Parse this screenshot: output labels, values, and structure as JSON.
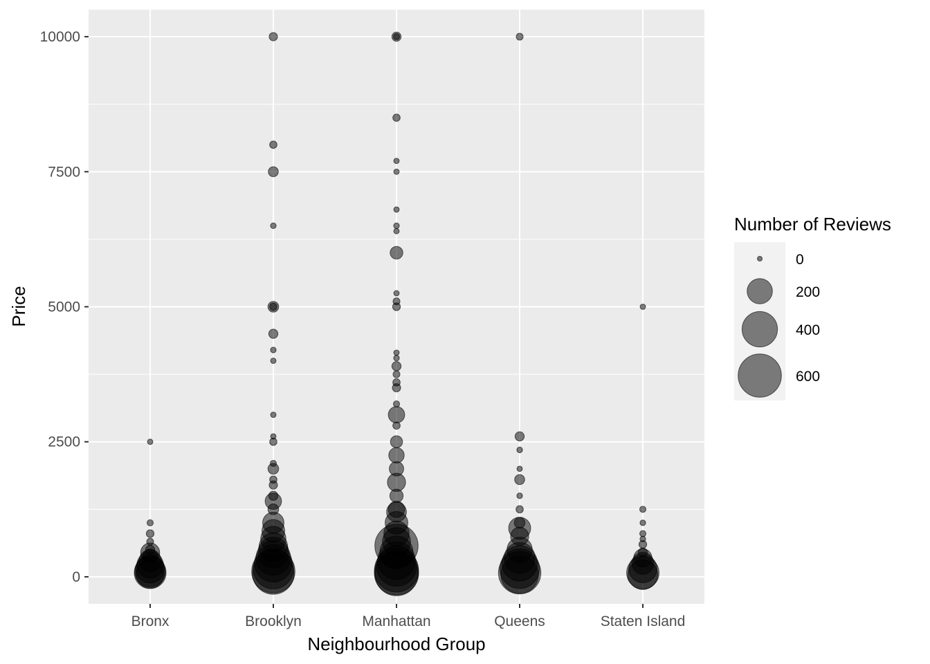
{
  "chart_data": {
    "type": "scatter",
    "title": "",
    "xlabel": "Neighbourhood Group",
    "ylabel": "Price",
    "categories": [
      "Bronx",
      "Brooklyn",
      "Manhattan",
      "Queens",
      "Staten Island"
    ],
    "ylim": [
      -500,
      10500
    ],
    "yticks": [
      0,
      2500,
      5000,
      7500,
      10000
    ],
    "ytick_labels": [
      "0",
      "2500",
      "5000",
      "7500",
      "10000"
    ],
    "grid": true,
    "legend": {
      "title": "Number of Reviews",
      "position": "right",
      "entries": [
        {
          "label": "0",
          "value": 0
        },
        {
          "label": "200",
          "value": 200
        },
        {
          "label": "400",
          "value": 400
        },
        {
          "label": "600",
          "value": 600
        }
      ]
    },
    "colors": {
      "panel": "#ebebeb",
      "grid": "#ffffff",
      "point_fill": "#000000",
      "point_opacity": 0.5
    },
    "size_encoding": "Number of Reviews",
    "points": [
      {
        "x": "Bronx",
        "y": 2500,
        "reviews": 2
      },
      {
        "x": "Bronx",
        "y": 1000,
        "reviews": 5
      },
      {
        "x": "Bronx",
        "y": 800,
        "reviews": 12
      },
      {
        "x": "Bronx",
        "y": 650,
        "reviews": 8
      },
      {
        "x": "Bronx",
        "y": 500,
        "reviews": 20
      },
      {
        "x": "Bronx",
        "y": 450,
        "reviews": 110
      },
      {
        "x": "Bronx",
        "y": 380,
        "reviews": 60
      },
      {
        "x": "Bronx",
        "y": 300,
        "reviews": 150
      },
      {
        "x": "Bronx",
        "y": 220,
        "reviews": 220
      },
      {
        "x": "Bronx",
        "y": 150,
        "reviews": 260
      },
      {
        "x": "Bronx",
        "y": 100,
        "reviews": 300
      },
      {
        "x": "Bronx",
        "y": 75,
        "reviews": 320
      },
      {
        "x": "Bronx",
        "y": 50,
        "reviews": 250
      },
      {
        "x": "Brooklyn",
        "y": 10000,
        "reviews": 15
      },
      {
        "x": "Brooklyn",
        "y": 8000,
        "reviews": 10
      },
      {
        "x": "Brooklyn",
        "y": 7500,
        "reviews": 25
      },
      {
        "x": "Brooklyn",
        "y": 6500,
        "reviews": 3
      },
      {
        "x": "Brooklyn",
        "y": 5000,
        "reviews": 30
      },
      {
        "x": "Brooklyn",
        "y": 5000,
        "reviews": 10
      },
      {
        "x": "Brooklyn",
        "y": 4500,
        "reviews": 20
      },
      {
        "x": "Brooklyn",
        "y": 4200,
        "reviews": 3
      },
      {
        "x": "Brooklyn",
        "y": 4000,
        "reviews": 2
      },
      {
        "x": "Brooklyn",
        "y": 3000,
        "reviews": 2
      },
      {
        "x": "Brooklyn",
        "y": 2600,
        "reviews": 2
      },
      {
        "x": "Brooklyn",
        "y": 2500,
        "reviews": 10
      },
      {
        "x": "Brooklyn",
        "y": 2100,
        "reviews": 5
      },
      {
        "x": "Brooklyn",
        "y": 2000,
        "reviews": 30
      },
      {
        "x": "Brooklyn",
        "y": 1800,
        "reviews": 10
      },
      {
        "x": "Brooklyn",
        "y": 1700,
        "reviews": 15
      },
      {
        "x": "Brooklyn",
        "y": 1500,
        "reviews": 20
      },
      {
        "x": "Brooklyn",
        "y": 1400,
        "reviews": 80
      },
      {
        "x": "Brooklyn",
        "y": 1250,
        "reviews": 30
      },
      {
        "x": "Brooklyn",
        "y": 1000,
        "reviews": 140
      },
      {
        "x": "Brooklyn",
        "y": 850,
        "reviews": 160
      },
      {
        "x": "Brooklyn",
        "y": 700,
        "reviews": 200
      },
      {
        "x": "Brooklyn",
        "y": 550,
        "reviews": 260
      },
      {
        "x": "Brooklyn",
        "y": 450,
        "reviews": 300
      },
      {
        "x": "Brooklyn",
        "y": 350,
        "reviews": 380
      },
      {
        "x": "Brooklyn",
        "y": 250,
        "reviews": 450
      },
      {
        "x": "Brooklyn",
        "y": 150,
        "reviews": 520
      },
      {
        "x": "Brooklyn",
        "y": 100,
        "reviews": 600
      },
      {
        "x": "Brooklyn",
        "y": 60,
        "reviews": 550
      },
      {
        "x": "Manhattan",
        "y": 10000,
        "reviews": 20
      },
      {
        "x": "Manhattan",
        "y": 10000,
        "reviews": 5
      },
      {
        "x": "Manhattan",
        "y": 8500,
        "reviews": 10
      },
      {
        "x": "Manhattan",
        "y": 7700,
        "reviews": 2
      },
      {
        "x": "Manhattan",
        "y": 7500,
        "reviews": 2
      },
      {
        "x": "Manhattan",
        "y": 6800,
        "reviews": 2
      },
      {
        "x": "Manhattan",
        "y": 6500,
        "reviews": 3
      },
      {
        "x": "Manhattan",
        "y": 6400,
        "reviews": 2
      },
      {
        "x": "Manhattan",
        "y": 6000,
        "reviews": 45
      },
      {
        "x": "Manhattan",
        "y": 5250,
        "reviews": 2
      },
      {
        "x": "Manhattan",
        "y": 5100,
        "reviews": 8
      },
      {
        "x": "Manhattan",
        "y": 5000,
        "reviews": 12
      },
      {
        "x": "Manhattan",
        "y": 4150,
        "reviews": 2
      },
      {
        "x": "Manhattan",
        "y": 4050,
        "reviews": 3
      },
      {
        "x": "Manhattan",
        "y": 3900,
        "reviews": 20
      },
      {
        "x": "Manhattan",
        "y": 3750,
        "reviews": 8
      },
      {
        "x": "Manhattan",
        "y": 3600,
        "reviews": 10
      },
      {
        "x": "Manhattan",
        "y": 3500,
        "reviews": 15
      },
      {
        "x": "Manhattan",
        "y": 3200,
        "reviews": 5
      },
      {
        "x": "Manhattan",
        "y": 3000,
        "reviews": 80
      },
      {
        "x": "Manhattan",
        "y": 2800,
        "reviews": 10
      },
      {
        "x": "Manhattan",
        "y": 2500,
        "reviews": 40
      },
      {
        "x": "Manhattan",
        "y": 2250,
        "reviews": 70
      },
      {
        "x": "Manhattan",
        "y": 2000,
        "reviews": 60
      },
      {
        "x": "Manhattan",
        "y": 1750,
        "reviews": 100
      },
      {
        "x": "Manhattan",
        "y": 1500,
        "reviews": 50
      },
      {
        "x": "Manhattan",
        "y": 1250,
        "reviews": 80
      },
      {
        "x": "Manhattan",
        "y": 1200,
        "reviews": 120
      },
      {
        "x": "Manhattan",
        "y": 1000,
        "reviews": 160
      },
      {
        "x": "Manhattan",
        "y": 800,
        "reviews": 200
      },
      {
        "x": "Manhattan",
        "y": 650,
        "reviews": 250
      },
      {
        "x": "Manhattan",
        "y": 575,
        "reviews": 600
      },
      {
        "x": "Manhattan",
        "y": 450,
        "reviews": 350
      },
      {
        "x": "Manhattan",
        "y": 300,
        "reviews": 450
      },
      {
        "x": "Manhattan",
        "y": 200,
        "reviews": 520
      },
      {
        "x": "Manhattan",
        "y": 125,
        "reviews": 620
      },
      {
        "x": "Manhattan",
        "y": 75,
        "reviews": 629
      },
      {
        "x": "Manhattan",
        "y": 50,
        "reviews": 600
      },
      {
        "x": "Queens",
        "y": 10000,
        "reviews": 8
      },
      {
        "x": "Queens",
        "y": 2600,
        "reviews": 20
      },
      {
        "x": "Queens",
        "y": 2350,
        "reviews": 3
      },
      {
        "x": "Queens",
        "y": 2000,
        "reviews": 2
      },
      {
        "x": "Queens",
        "y": 1800,
        "reviews": 25
      },
      {
        "x": "Queens",
        "y": 1500,
        "reviews": 3
      },
      {
        "x": "Queens",
        "y": 1250,
        "reviews": 10
      },
      {
        "x": "Queens",
        "y": 1000,
        "reviews": 30
      },
      {
        "x": "Queens",
        "y": 900,
        "reviews": 150
      },
      {
        "x": "Queens",
        "y": 750,
        "reviews": 100
      },
      {
        "x": "Queens",
        "y": 500,
        "reviews": 200
      },
      {
        "x": "Queens",
        "y": 350,
        "reviews": 300
      },
      {
        "x": "Queens",
        "y": 250,
        "reviews": 400
      },
      {
        "x": "Queens",
        "y": 150,
        "reviews": 500
      },
      {
        "x": "Queens",
        "y": 75,
        "reviews": 576
      },
      {
        "x": "Queens",
        "y": 40,
        "reviews": 450
      },
      {
        "x": "Staten Island",
        "y": 5000,
        "reviews": 2
      },
      {
        "x": "Staten Island",
        "y": 1250,
        "reviews": 5
      },
      {
        "x": "Staten Island",
        "y": 1000,
        "reviews": 3
      },
      {
        "x": "Staten Island",
        "y": 800,
        "reviews": 5
      },
      {
        "x": "Staten Island",
        "y": 700,
        "reviews": 3
      },
      {
        "x": "Staten Island",
        "y": 600,
        "reviews": 12
      },
      {
        "x": "Staten Island",
        "y": 450,
        "reviews": 20
      },
      {
        "x": "Staten Island",
        "y": 350,
        "reviews": 100
      },
      {
        "x": "Staten Island",
        "y": 250,
        "reviews": 150
      },
      {
        "x": "Staten Island",
        "y": 150,
        "reviews": 250
      },
      {
        "x": "Staten Island",
        "y": 75,
        "reviews": 333
      },
      {
        "x": "Staten Island",
        "y": 40,
        "reviews": 280
      }
    ]
  }
}
